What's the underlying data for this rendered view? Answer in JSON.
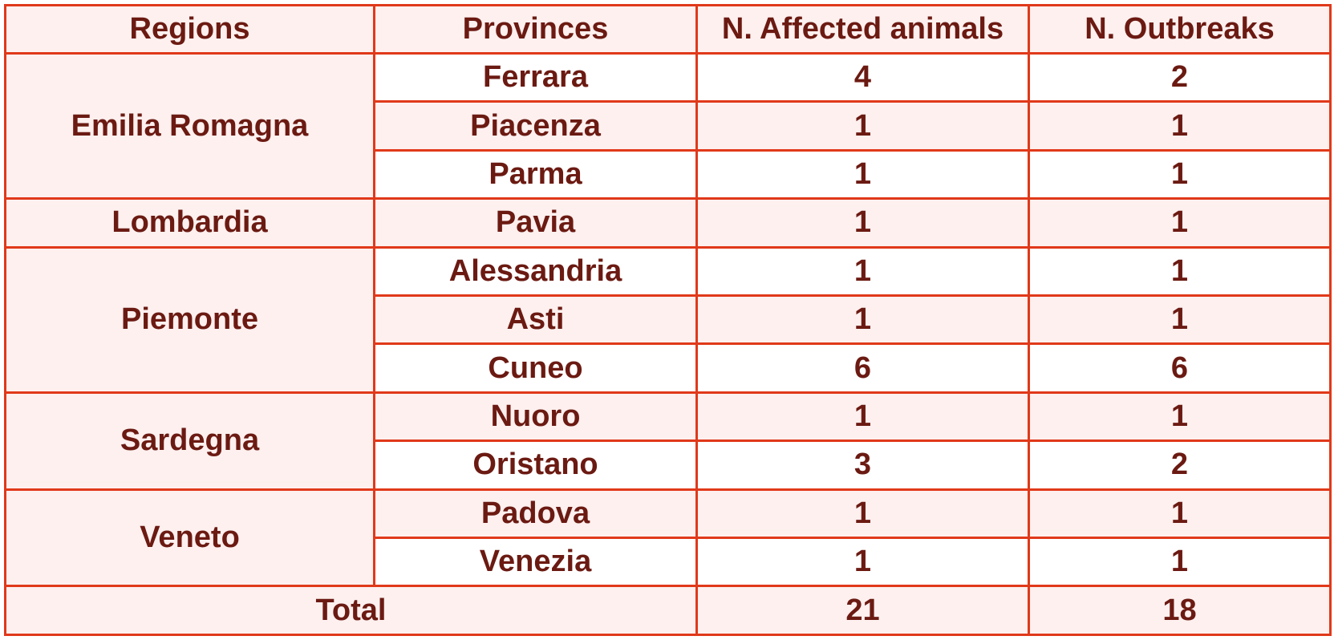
{
  "columns": [
    "Regions",
    "Provinces",
    "N. Affected animals",
    "N. Outbreaks"
  ],
  "rows": [
    {
      "region": "Emilia Romagna",
      "province": "Ferrara",
      "affected": "4",
      "outbreaks": "2"
    },
    {
      "region": "",
      "province": "Piacenza",
      "affected": "1",
      "outbreaks": "1"
    },
    {
      "region": "",
      "province": "Parma",
      "affected": "1",
      "outbreaks": "1"
    },
    {
      "region": "Lombardia",
      "province": "Pavia",
      "affected": "1",
      "outbreaks": "1"
    },
    {
      "region": "Piemonte",
      "province": "Alessandria",
      "affected": "1",
      "outbreaks": "1"
    },
    {
      "region": "",
      "province": "Asti",
      "affected": "1",
      "outbreaks": "1"
    },
    {
      "region": "",
      "province": "Cuneo",
      "affected": "6",
      "outbreaks": "6"
    },
    {
      "region": "Sardegna",
      "province": "Nuoro",
      "affected": "1",
      "outbreaks": "1"
    },
    {
      "region": "",
      "province": "Oristano",
      "affected": "3",
      "outbreaks": "2"
    },
    {
      "region": "Veneto",
      "province": "Padova",
      "affected": "1",
      "outbreaks": "1"
    },
    {
      "region": "",
      "province": "Venezia",
      "affected": "1",
      "outbreaks": "1"
    }
  ],
  "total": {
    "label": "Total",
    "affected": "21",
    "outbreaks": "18"
  }
}
